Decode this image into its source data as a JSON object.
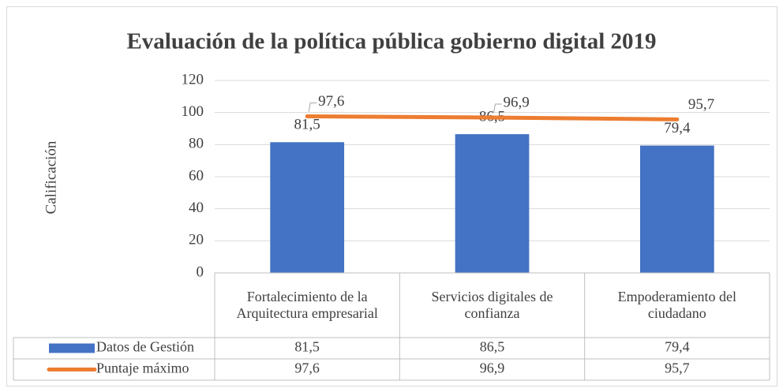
{
  "chart_data": {
    "type": "bar",
    "title": "Evaluación de la política pública gobierno digital 2019",
    "y_label": "Calificación",
    "categories": [
      "Fortalecimiento de la Arquitectura empresarial",
      "Servicios digitales de confianza",
      "Empoderamiento del ciudadano"
    ],
    "series": [
      {
        "name": "Datos de Gestión",
        "type": "bar",
        "color": "#4472c4",
        "values": [
          81.5,
          86.5,
          79.4
        ],
        "value_labels": [
          "81,5",
          "86,5",
          "79,4"
        ]
      },
      {
        "name": "Puntaje máximo",
        "type": "line",
        "color": "#ed7d31",
        "values": [
          97.6,
          96.9,
          95.7
        ],
        "value_labels": [
          "97,6",
          "96,9",
          "95,7"
        ]
      }
    ],
    "ylim": [
      0,
      120
    ],
    "yticks": [
      0,
      20,
      40,
      60,
      80,
      100,
      120
    ],
    "grid": true,
    "data_table": true
  }
}
